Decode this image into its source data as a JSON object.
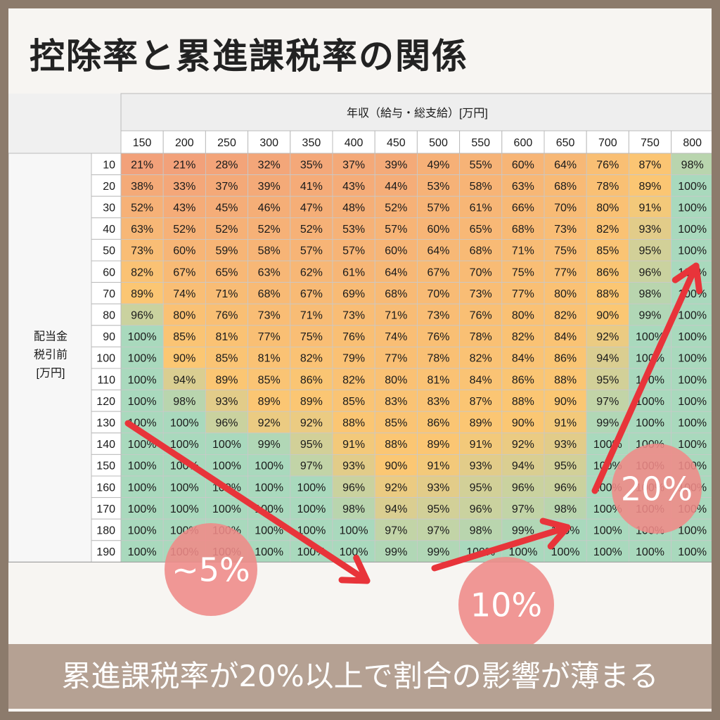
{
  "title": "控除率と累進課税率の関係",
  "caption": "累進課税率が20%以上で割合の影響が薄まる",
  "chart_data": {
    "type": "heatmap",
    "x_title": "年収（給与・総支給）[万円]",
    "y_title": [
      "配当金",
      "税引前",
      "[万円]"
    ],
    "x": [
      "150",
      "200",
      "250",
      "300",
      "350",
      "400",
      "450",
      "500",
      "550",
      "600",
      "650",
      "700",
      "750",
      "800"
    ],
    "y": [
      "10",
      "20",
      "30",
      "40",
      "50",
      "60",
      "70",
      "80",
      "90",
      "100",
      "110",
      "120",
      "130",
      "140",
      "150",
      "160",
      "170",
      "180",
      "190"
    ],
    "values": [
      [
        21,
        21,
        28,
        32,
        35,
        37,
        39,
        49,
        55,
        60,
        64,
        76,
        87,
        98
      ],
      [
        38,
        33,
        37,
        39,
        41,
        43,
        44,
        53,
        58,
        63,
        68,
        78,
        89,
        100
      ],
      [
        52,
        43,
        45,
        46,
        47,
        48,
        52,
        57,
        61,
        66,
        70,
        80,
        91,
        100
      ],
      [
        63,
        52,
        52,
        52,
        52,
        53,
        57,
        60,
        65,
        68,
        73,
        82,
        93,
        100
      ],
      [
        73,
        60,
        59,
        58,
        57,
        57,
        60,
        64,
        68,
        71,
        75,
        85,
        95,
        100
      ],
      [
        82,
        67,
        65,
        63,
        62,
        61,
        64,
        67,
        70,
        75,
        77,
        86,
        96,
        100
      ],
      [
        89,
        74,
        71,
        68,
        67,
        69,
        68,
        70,
        73,
        77,
        80,
        88,
        98,
        100
      ],
      [
        96,
        80,
        76,
        73,
        71,
        73,
        71,
        73,
        76,
        80,
        82,
        90,
        99,
        100
      ],
      [
        100,
        85,
        81,
        77,
        75,
        76,
        74,
        76,
        78,
        82,
        84,
        92,
        100,
        100
      ],
      [
        100,
        90,
        85,
        81,
        82,
        79,
        77,
        78,
        82,
        84,
        86,
        94,
        100,
        100
      ],
      [
        100,
        94,
        89,
        85,
        86,
        82,
        80,
        81,
        84,
        86,
        88,
        95,
        100,
        100
      ],
      [
        100,
        98,
        93,
        89,
        89,
        85,
        83,
        83,
        87,
        88,
        90,
        97,
        100,
        100
      ],
      [
        100,
        100,
        96,
        92,
        92,
        88,
        85,
        86,
        89,
        90,
        91,
        99,
        100,
        100
      ],
      [
        100,
        100,
        100,
        99,
        95,
        91,
        88,
        89,
        91,
        92,
        93,
        100,
        100,
        100
      ],
      [
        100,
        100,
        100,
        100,
        97,
        93,
        90,
        91,
        93,
        94,
        95,
        100,
        100,
        100
      ],
      [
        100,
        100,
        100,
        100,
        100,
        96,
        92,
        93,
        95,
        96,
        96,
        100,
        100,
        100
      ],
      [
        100,
        100,
        100,
        100,
        100,
        98,
        94,
        95,
        96,
        97,
        98,
        100,
        100,
        100
      ],
      [
        100,
        100,
        100,
        100,
        100,
        100,
        97,
        97,
        98,
        99,
        100,
        100,
        100,
        100
      ],
      [
        100,
        100,
        100,
        100,
        100,
        100,
        99,
        99,
        100,
        100,
        100,
        100,
        100,
        100
      ]
    ],
    "value_suffix": "%",
    "annotations": [
      "~5%",
      "10%",
      "20%"
    ],
    "colors": {
      "low": "#f2a07a",
      "mid": "#fbc773",
      "high": "#a9d9bd",
      "arrow": "#e8343a",
      "bubble": "#ef8a88"
    }
  }
}
